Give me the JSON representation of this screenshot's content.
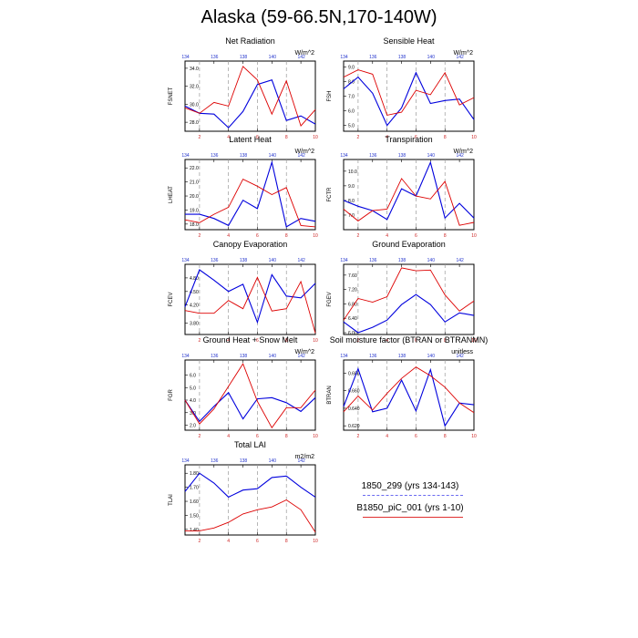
{
  "figure": {
    "title": "Alaska (59-66.5N,170-140W)",
    "top_ticks": [
      "134",
      "136",
      "138",
      "140",
      "142"
    ],
    "bottom_ticks": [
      "2",
      "4",
      "6",
      "8",
      "10"
    ]
  },
  "legend": {
    "items": [
      {
        "label": "1850_299 (yrs 134-143)",
        "color": "#0000dd"
      },
      {
        "label": "B1850_piC_001 (yrs 1-10)",
        "color": "#dd0000"
      }
    ]
  },
  "chart_data": [
    {
      "type": "line",
      "title": "Net Radiation",
      "ylabel": "FSNET",
      "units": "W/m^2",
      "yticks": [
        "28.0",
        "30.0",
        "32.0",
        "34.0"
      ],
      "ylim": [
        27.0,
        34.8
      ],
      "x": [
        1,
        2,
        3,
        4,
        5,
        6,
        7,
        8,
        9,
        10
      ],
      "series": [
        {
          "name": "1850_299",
          "values": [
            29.8,
            29.0,
            28.9,
            27.4,
            29.2,
            32.2,
            32.7,
            28.2,
            28.7,
            27.8
          ]
        },
        {
          "name": "B1850_piC_001",
          "values": [
            29.6,
            29.0,
            30.2,
            29.8,
            34.2,
            32.7,
            28.9,
            32.6,
            27.6,
            29.4
          ]
        }
      ]
    },
    {
      "type": "line",
      "title": "Sensible Heat",
      "ylabel": "FSH",
      "units": "W/m^2",
      "yticks": [
        "5.0",
        "6.0",
        "7.0",
        "8.0",
        "9.0"
      ],
      "ylim": [
        4.6,
        9.4
      ],
      "x": [
        1,
        2,
        3,
        4,
        5,
        6,
        7,
        8,
        9,
        10
      ],
      "series": [
        {
          "name": "1850_299",
          "values": [
            7.5,
            8.3,
            7.2,
            5.0,
            6.2,
            8.6,
            6.5,
            6.7,
            6.8,
            5.4
          ]
        },
        {
          "name": "B1850_piC_001",
          "values": [
            8.3,
            8.8,
            8.5,
            5.7,
            5.9,
            7.4,
            7.1,
            8.6,
            6.4,
            6.9
          ]
        }
      ]
    },
    {
      "type": "line",
      "title": "Latent Heat",
      "ylabel": "LHEAT",
      "units": "W/m^2",
      "yticks": [
        "18.0",
        "19.0",
        "20.0",
        "21.0",
        "22.0"
      ],
      "ylim": [
        17.6,
        22.6
      ],
      "x": [
        1,
        2,
        3,
        4,
        5,
        6,
        7,
        8,
        9,
        10
      ],
      "series": [
        {
          "name": "1850_299",
          "values": [
            18.7,
            18.7,
            18.4,
            17.9,
            19.7,
            19.1,
            22.4,
            17.8,
            18.4,
            18.2
          ]
        },
        {
          "name": "B1850_piC_001",
          "values": [
            18.3,
            18.1,
            18.7,
            19.2,
            21.2,
            20.7,
            20.1,
            20.6,
            17.9,
            17.8
          ]
        }
      ]
    },
    {
      "type": "line",
      "title": "Transpiration",
      "ylabel": "FCTR",
      "units": "W/m^2",
      "yticks": [
        "7.0",
        "8.0",
        "9.0",
        "10.0"
      ],
      "ylim": [
        6.0,
        10.8
      ],
      "x": [
        1,
        2,
        3,
        4,
        5,
        6,
        7,
        8,
        9,
        10
      ],
      "series": [
        {
          "name": "1850_299",
          "values": [
            8.0,
            7.6,
            7.3,
            6.7,
            8.8,
            8.3,
            10.6,
            6.8,
            7.8,
            6.8
          ]
        },
        {
          "name": "B1850_piC_001",
          "values": [
            7.4,
            6.6,
            7.3,
            7.4,
            9.5,
            8.3,
            8.1,
            9.3,
            6.3,
            6.5
          ]
        }
      ]
    },
    {
      "type": "line",
      "title": "Canopy Evaporation",
      "ylabel": "FCEV",
      "units": "",
      "yticks": [
        "3.80",
        "4.20",
        "4.50",
        "4.80"
      ],
      "ylim": [
        3.55,
        5.1
      ],
      "x": [
        1,
        2,
        3,
        4,
        5,
        6,
        7,
        8,
        9,
        10
      ],
      "series": [
        {
          "name": "1850_299",
          "values": [
            4.16,
            4.98,
            4.75,
            4.5,
            4.66,
            3.82,
            4.87,
            4.4,
            4.36,
            4.68
          ]
        },
        {
          "name": "B1850_piC_001",
          "values": [
            4.08,
            4.02,
            4.02,
            4.3,
            4.12,
            4.81,
            4.07,
            4.12,
            4.72,
            3.58
          ]
        }
      ]
    },
    {
      "type": "line",
      "title": "Ground Evaporation",
      "ylabel": "FGEV",
      "units": "",
      "yticks": [
        "6.00",
        "6.40",
        "6.80",
        "7.20",
        "7.60"
      ],
      "ylim": [
        5.95,
        7.9
      ],
      "x": [
        1,
        2,
        3,
        4,
        5,
        6,
        7,
        8,
        9,
        10
      ],
      "series": [
        {
          "name": "1850_299",
          "values": [
            6.3,
            6.0,
            6.15,
            6.35,
            6.78,
            7.06,
            6.78,
            6.3,
            6.55,
            6.48
          ]
        },
        {
          "name": "B1850_piC_001",
          "values": [
            6.35,
            6.95,
            6.85,
            7.0,
            7.8,
            7.72,
            7.74,
            7.05,
            6.6,
            6.88
          ]
        }
      ]
    },
    {
      "type": "line",
      "title": "Ground Heat + Snow Melt",
      "ylabel": "FGR",
      "units": "W/m^2",
      "yticks": [
        "2.0",
        "3.0",
        "4.0",
        "5.0",
        "6.0"
      ],
      "ylim": [
        1.6,
        7.2
      ],
      "x": [
        1,
        2,
        3,
        4,
        5,
        6,
        7,
        8,
        9,
        10
      ],
      "series": [
        {
          "name": "1850_299",
          "values": [
            4.0,
            2.3,
            3.5,
            4.6,
            2.5,
            4.1,
            4.2,
            3.8,
            3.1,
            4.2
          ]
        },
        {
          "name": "B1850_piC_001",
          "values": [
            4.0,
            2.1,
            3.3,
            5.1,
            6.9,
            3.9,
            1.8,
            3.4,
            3.4,
            4.8
          ]
        }
      ]
    },
    {
      "type": "line",
      "title": "Soil moisture factor (BTRAN or BTRANMN)",
      "ylabel": "BTRAN",
      "units": "unitless",
      "yticks": [
        "0.620",
        "0.640",
        "0.660",
        "0.680"
      ],
      "ylim": [
        0.615,
        0.695
      ],
      "x": [
        1,
        2,
        3,
        4,
        5,
        6,
        7,
        8,
        9,
        10
      ],
      "series": [
        {
          "name": "1850_299",
          "values": [
            0.642,
            0.685,
            0.636,
            0.64,
            0.672,
            0.637,
            0.684,
            0.62,
            0.646,
            0.644
          ]
        },
        {
          "name": "B1850_piC_001",
          "values": [
            0.636,
            0.654,
            0.638,
            0.657,
            0.674,
            0.687,
            0.677,
            0.664,
            0.646,
            0.635
          ]
        }
      ]
    },
    {
      "type": "line",
      "title": "Total LAI",
      "ylabel": "TLAI",
      "units": "m2/m2",
      "yticks": [
        "1.40",
        "1.50",
        "1.60",
        "1.70",
        "1.80"
      ],
      "ylim": [
        1.36,
        1.86
      ],
      "x": [
        1,
        2,
        3,
        4,
        5,
        6,
        7,
        8,
        9,
        10
      ],
      "series": [
        {
          "name": "1850_299",
          "values": [
            1.67,
            1.8,
            1.73,
            1.63,
            1.68,
            1.69,
            1.77,
            1.78,
            1.7,
            1.63
          ]
        },
        {
          "name": "B1850_piC_001",
          "values": [
            1.39,
            1.39,
            1.41,
            1.45,
            1.51,
            1.54,
            1.56,
            1.61,
            1.54,
            1.38
          ]
        }
      ]
    }
  ]
}
